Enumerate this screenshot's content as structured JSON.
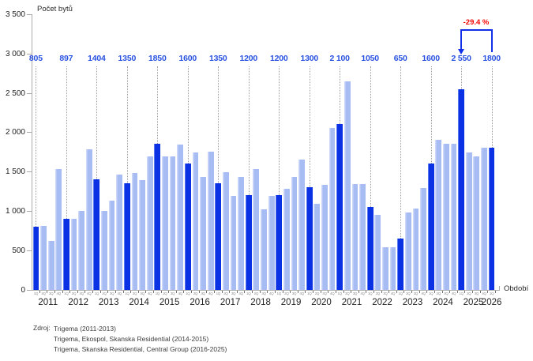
{
  "chart_data": {
    "type": "bar",
    "title": "Počet bytů",
    "xlabel": "Období",
    "ylim": [
      0,
      3500
    ],
    "grid": false,
    "y_ticks": [
      {
        "label": "3 500",
        "value": 3500
      },
      {
        "label": "3 000",
        "value": 3000
      },
      {
        "label": "2 500",
        "value": 2500
      },
      {
        "label": "2 000",
        "value": 2000
      },
      {
        "label": "1 500",
        "value": 1500
      },
      {
        "label": "1 000",
        "value": 1000
      },
      {
        "label": "500",
        "value": 500
      },
      {
        "label": "0",
        "value": 0
      }
    ],
    "series_note": "dark bars = 1Q of each year, annotated with value label above a dotted drop line",
    "years": [
      {
        "year": "2011",
        "q1_label": "805",
        "quarters": [
          {
            "q": "1Q",
            "v": 805,
            "hl": true
          },
          {
            "q": "2Q",
            "v": 810
          },
          {
            "q": "3Q",
            "v": 620
          },
          {
            "q": "4Q",
            "v": 1530
          }
        ]
      },
      {
        "year": "2012",
        "q1_label": "897",
        "quarters": [
          {
            "q": "1Q",
            "v": 897,
            "hl": true
          },
          {
            "q": "2Q",
            "v": 900
          },
          {
            "q": "3Q",
            "v": 1000
          },
          {
            "q": "4Q",
            "v": 1780
          }
        ]
      },
      {
        "year": "2013",
        "q1_label": "1404",
        "quarters": [
          {
            "q": "1Q",
            "v": 1404,
            "hl": true
          },
          {
            "q": "2Q",
            "v": 1000
          },
          {
            "q": "3Q",
            "v": 1130
          },
          {
            "q": "4Q",
            "v": 1460
          }
        ]
      },
      {
        "year": "2014",
        "q1_label": "1350",
        "quarters": [
          {
            "q": "1Q",
            "v": 1350,
            "hl": true
          },
          {
            "q": "2Q",
            "v": 1480
          },
          {
            "q": "3Q",
            "v": 1390
          },
          {
            "q": "4Q",
            "v": 1690
          }
        ]
      },
      {
        "year": "2015",
        "q1_label": "1850",
        "quarters": [
          {
            "q": "1Q",
            "v": 1850,
            "hl": true
          },
          {
            "q": "2Q",
            "v": 1690
          },
          {
            "q": "3Q",
            "v": 1690
          },
          {
            "q": "4Q",
            "v": 1840
          }
        ]
      },
      {
        "year": "2016",
        "q1_label": "1600",
        "quarters": [
          {
            "q": "1Q",
            "v": 1600,
            "hl": true
          },
          {
            "q": "2Q",
            "v": 1740
          },
          {
            "q": "3Q",
            "v": 1430
          },
          {
            "q": "4Q",
            "v": 1750
          }
        ]
      },
      {
        "year": "2017",
        "q1_label": "1350",
        "quarters": [
          {
            "q": "1Q",
            "v": 1350,
            "hl": true
          },
          {
            "q": "2Q",
            "v": 1490
          },
          {
            "q": "3Q",
            "v": 1190
          },
          {
            "q": "4Q",
            "v": 1430
          }
        ]
      },
      {
        "year": "2018",
        "q1_label": "1200",
        "quarters": [
          {
            "q": "1Q",
            "v": 1200,
            "hl": true
          },
          {
            "q": "2Q",
            "v": 1530
          },
          {
            "q": "3Q",
            "v": 1020
          },
          {
            "q": "4Q",
            "v": 1190
          }
        ]
      },
      {
        "year": "2019",
        "q1_label": "1200",
        "quarters": [
          {
            "q": "1Q",
            "v": 1200,
            "hl": true
          },
          {
            "q": "2Q",
            "v": 1280
          },
          {
            "q": "3Q",
            "v": 1430
          },
          {
            "q": "4Q",
            "v": 1650
          }
        ]
      },
      {
        "year": "2020",
        "q1_label": "1300",
        "quarters": [
          {
            "q": "1Q",
            "v": 1300,
            "hl": true
          },
          {
            "q": "2Q",
            "v": 1090
          },
          {
            "q": "3Q",
            "v": 1330
          },
          {
            "q": "4Q",
            "v": 2050
          }
        ]
      },
      {
        "year": "2021",
        "q1_label": "2 100",
        "quarters": [
          {
            "q": "1Q",
            "v": 2100,
            "hl": true
          },
          {
            "q": "2Q",
            "v": 2650
          },
          {
            "q": "3Q",
            "v": 1340
          },
          {
            "q": "4Q",
            "v": 1340
          }
        ]
      },
      {
        "year": "2022",
        "q1_label": "1050",
        "quarters": [
          {
            "q": "1Q",
            "v": 1050,
            "hl": true
          },
          {
            "q": "2Q",
            "v": 950
          },
          {
            "q": "3Q",
            "v": 540
          },
          {
            "q": "4Q",
            "v": 540
          }
        ]
      },
      {
        "year": "2023",
        "q1_label": "650",
        "quarters": [
          {
            "q": "1Q",
            "v": 650,
            "hl": true
          },
          {
            "q": "2Q",
            "v": 980
          },
          {
            "q": "3Q",
            "v": 1030
          },
          {
            "q": "4Q",
            "v": 1290
          }
        ]
      },
      {
        "year": "2024",
        "q1_label": "1600",
        "quarters": [
          {
            "q": "1Q",
            "v": 1600,
            "hl": true
          },
          {
            "q": "2Q",
            "v": 1900
          },
          {
            "q": "3Q",
            "v": 1850
          },
          {
            "q": "4Q",
            "v": 1850
          }
        ]
      },
      {
        "year": "2025",
        "q1_label": "2 550",
        "quarters": [
          {
            "q": "1Q",
            "v": 2550,
            "hl": true
          },
          {
            "q": "2Q",
            "v": 1740
          },
          {
            "q": "3Q",
            "v": 1690
          },
          {
            "q": "4Q",
            "v": 1800
          }
        ]
      },
      {
        "year": "2026",
        "q1_label": "1800",
        "quarters": [
          {
            "q": "1Q",
            "v": 1800,
            "hl": true
          }
        ]
      }
    ],
    "annotation": {
      "label": "-29.4 %",
      "from_year": "2025",
      "to_year": "2026"
    },
    "legend_position": "none"
  },
  "source": {
    "prefix": "Zdroj:",
    "lines": [
      "Trigema (2011-2013)",
      "Trigema, Ekospol, Skanska Residential (2014-2015)",
      "Trigema, Skanska Residential, Central Group (2016-2025)"
    ]
  },
  "colors": {
    "bar_dark": "#0a32e4",
    "bar_light": "#a7bcf2",
    "value_label": "#2a52e0",
    "annotation_red": "#f40505",
    "annotation_arrow": "#1130e8",
    "axis": "#ababab",
    "dropline": "#9b9b9b"
  }
}
